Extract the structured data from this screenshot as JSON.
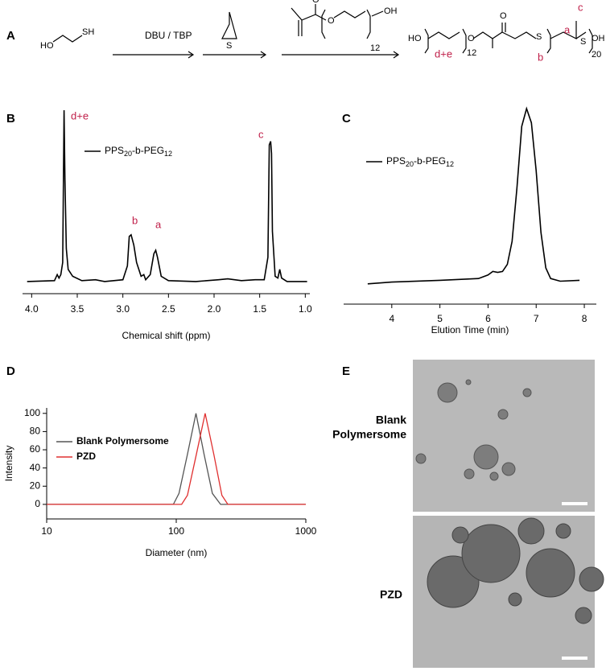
{
  "scheme": {
    "panel": "A",
    "labels": [
      "HO",
      "SH",
      "DBU / TBP",
      "S",
      "O",
      "O",
      "OH",
      "12",
      "HO",
      "d+e",
      "12",
      "O",
      "O",
      "S",
      "a",
      "c",
      "b",
      "S",
      "20",
      "OH"
    ]
  },
  "chart_data": [
    {
      "type": "line",
      "panel": "B",
      "x_label": "Chemical shift (ppm)",
      "xlim": [
        4.1,
        0.95
      ],
      "ylim": [
        0,
        100
      ],
      "xticks": [
        {
          "value": 4,
          "label": "4.0"
        },
        3.5,
        {
          "value": 3,
          "label": "3.0"
        },
        2.5,
        {
          "value": 2,
          "label": "2.0"
        },
        1.5,
        {
          "value": 1,
          "label": "1.0"
        }
      ],
      "annotations": [
        "d+e",
        "b",
        "a",
        "c"
      ],
      "series": [
        {
          "name": "PPS20-b-PEG12",
          "color": "#000000",
          "x": [
            4.05,
            3.75,
            3.72,
            3.7,
            3.68,
            3.66,
            3.645,
            3.635,
            3.62,
            3.6,
            3.55,
            3.45,
            3.3,
            3.2,
            3.0,
            2.95,
            2.93,
            2.91,
            2.88,
            2.85,
            2.8,
            2.77,
            2.75,
            2.7,
            2.66,
            2.64,
            2.62,
            2.58,
            2.5,
            2.2,
            1.95,
            1.85,
            1.7,
            1.55,
            1.45,
            1.41,
            1.395,
            1.38,
            1.37,
            1.36,
            1.33,
            1.3,
            1.28,
            1.26,
            1.2,
            1.1,
            0.98
          ],
          "values": [
            1,
            1.5,
            5,
            3,
            5,
            12,
            100,
            60,
            20,
            8,
            4,
            1.5,
            2,
            1,
            2,
            10,
            27,
            28,
            22,
            12,
            4,
            5,
            2,
            5,
            17,
            19,
            15,
            4,
            1.5,
            1,
            2,
            2.5,
            1.5,
            2,
            2,
            15,
            80,
            82,
            75,
            30,
            4,
            3,
            8,
            3,
            1,
            1,
            1
          ]
        }
      ]
    },
    {
      "type": "line",
      "panel": "C",
      "x_label": "Elution Time (min)",
      "xlim": [
        3.0,
        8.25
      ],
      "ylim": [
        0,
        100
      ],
      "xticks": [
        4,
        5,
        6,
        7,
        8
      ],
      "series": [
        {
          "name": "PPS20-b-PEG12",
          "color": "#000000",
          "x": [
            3.5,
            4,
            5,
            5.8,
            6.0,
            6.1,
            6.2,
            6.3,
            6.4,
            6.5,
            6.6,
            6.7,
            6.8,
            6.9,
            7.0,
            7.1,
            7.2,
            7.3,
            7.5,
            7.9
          ],
          "values": [
            1,
            2,
            3,
            4,
            6,
            8,
            7.5,
            8,
            12,
            25,
            55,
            90,
            100,
            92,
            65,
            30,
            10,
            4,
            2.5,
            3
          ]
        }
      ]
    },
    {
      "type": "line",
      "panel": "D",
      "x_label": "Diameter (nm)",
      "y_label": "Intensity",
      "xscale": "log",
      "xlim": [
        10,
        1000
      ],
      "ylim": [
        -16,
        106
      ],
      "xticks": [
        10,
        100,
        1000
      ],
      "yticks": [
        0,
        20,
        40,
        60,
        80,
        100
      ],
      "series": [
        {
          "name": "Blank Polymersome",
          "color": "#555555",
          "x": [
            10,
            95,
            105,
            122,
            142,
            164,
            190,
            220,
            1000
          ],
          "values": [
            0,
            0,
            12,
            55,
            100,
            55,
            12,
            0,
            0
          ]
        },
        {
          "name": "PZD",
          "color": "#e03030",
          "x": [
            10,
            110,
            122,
            143,
            167,
            195,
            225,
            250,
            1000
          ],
          "values": [
            0,
            0,
            10,
            55,
            100,
            55,
            10,
            0,
            0
          ]
        }
      ]
    }
  ],
  "tem": {
    "panel": "E",
    "rows": [
      {
        "label_lines": [
          "Blank",
          "Polymersome"
        ]
      },
      {
        "label_lines": [
          "PZD"
        ]
      }
    ]
  }
}
